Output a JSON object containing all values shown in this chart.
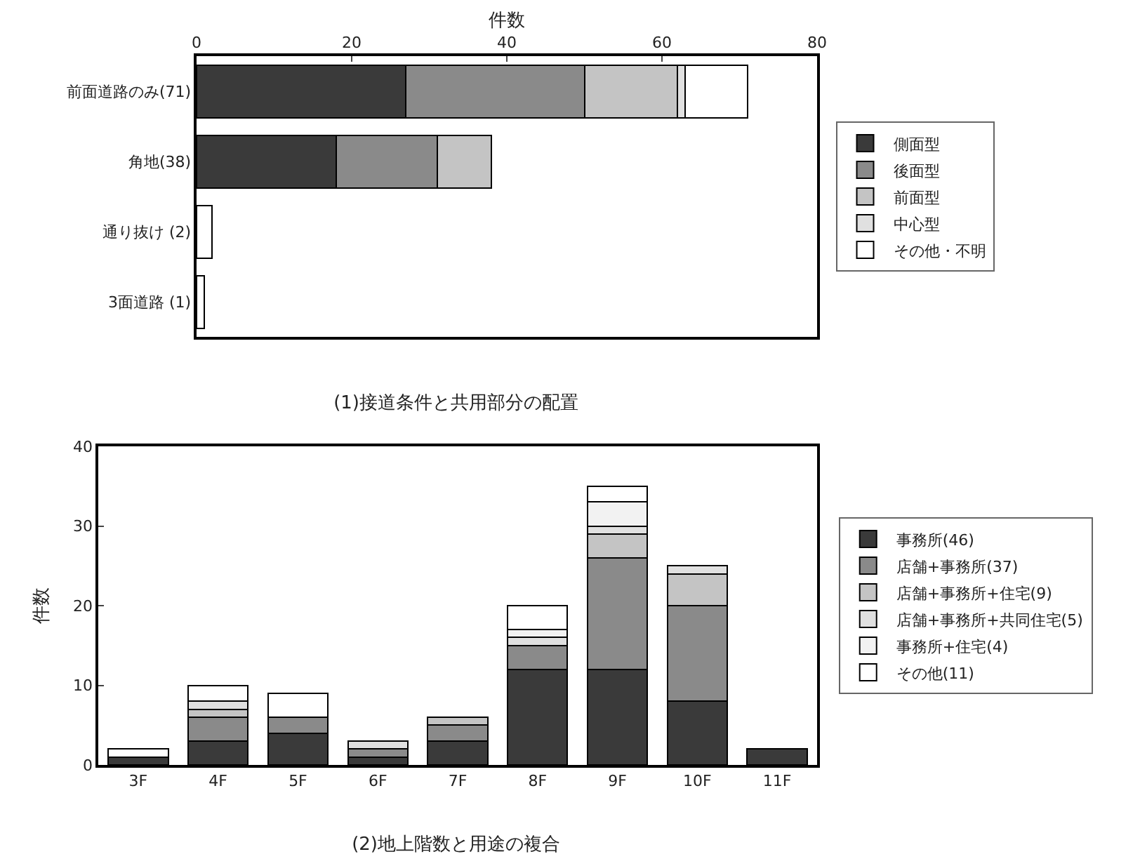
{
  "chart_data": [
    {
      "type": "bar",
      "orientation": "horizontal",
      "stacked": true,
      "title": "(1)接道条件と共用部分の配置",
      "xlabel": "件数",
      "categories": [
        "前面道路のみ(71)",
        "角地(38)",
        "通り抜け (2)",
        "3面道路 (1)"
      ],
      "xlim": [
        0,
        80
      ],
      "xticks": [
        0,
        20,
        40,
        60,
        80
      ],
      "legend": "right",
      "grid": false,
      "series": [
        {
          "name": "側面型",
          "color": "#3a3a3a",
          "values": [
            27,
            18,
            null,
            null
          ]
        },
        {
          "name": "後面型",
          "color": "#8a8a8a",
          "values": [
            23,
            13,
            null,
            null
          ]
        },
        {
          "name": "前面型",
          "color": "#c4c4c4",
          "values": [
            12,
            7,
            null,
            null
          ]
        },
        {
          "name": "中心型",
          "color": "#e0e0e0",
          "values": [
            1,
            null,
            null,
            null
          ]
        },
        {
          "name": "その他・不明",
          "color": "#ffffff",
          "values": [
            8,
            null,
            2,
            1
          ]
        }
      ]
    },
    {
      "type": "bar",
      "stacked": true,
      "title": "(2)地上階数と用途の複合",
      "ylabel": "件数",
      "categories": [
        "3F",
        "4F",
        "5F",
        "6F",
        "7F",
        "8F",
        "9F",
        "10F",
        "11F"
      ],
      "ylim": [
        0,
        40
      ],
      "yticks": [
        0,
        10,
        20,
        30,
        40
      ],
      "legend": "right",
      "grid": false,
      "series": [
        {
          "name": "事務所(46)",
          "color": "#3a3a3a",
          "values": [
            1,
            3,
            4,
            1,
            3,
            12,
            12,
            8,
            2
          ]
        },
        {
          "name": "店舗+事務所(37)",
          "color": "#8a8a8a",
          "values": [
            null,
            3,
            2,
            1,
            2,
            3,
            14,
            12,
            null
          ]
        },
        {
          "name": "店舗+事務所+住宅(9)",
          "color": "#c4c4c4",
          "values": [
            null,
            1,
            null,
            null,
            1,
            null,
            3,
            4,
            null
          ]
        },
        {
          "name": "店舗+事務所+共同住宅(5)",
          "color": "#e0e0e0",
          "values": [
            null,
            1,
            null,
            1,
            null,
            1,
            1,
            1,
            null
          ]
        },
        {
          "name": "事務所+住宅(4)",
          "color": "#f2f2f2",
          "values": [
            null,
            null,
            null,
            null,
            null,
            1,
            3,
            null,
            null
          ]
        },
        {
          "name": "その他(11)",
          "color": "#ffffff",
          "values": [
            1,
            2,
            3,
            null,
            null,
            3,
            2,
            null,
            null
          ]
        }
      ]
    }
  ]
}
